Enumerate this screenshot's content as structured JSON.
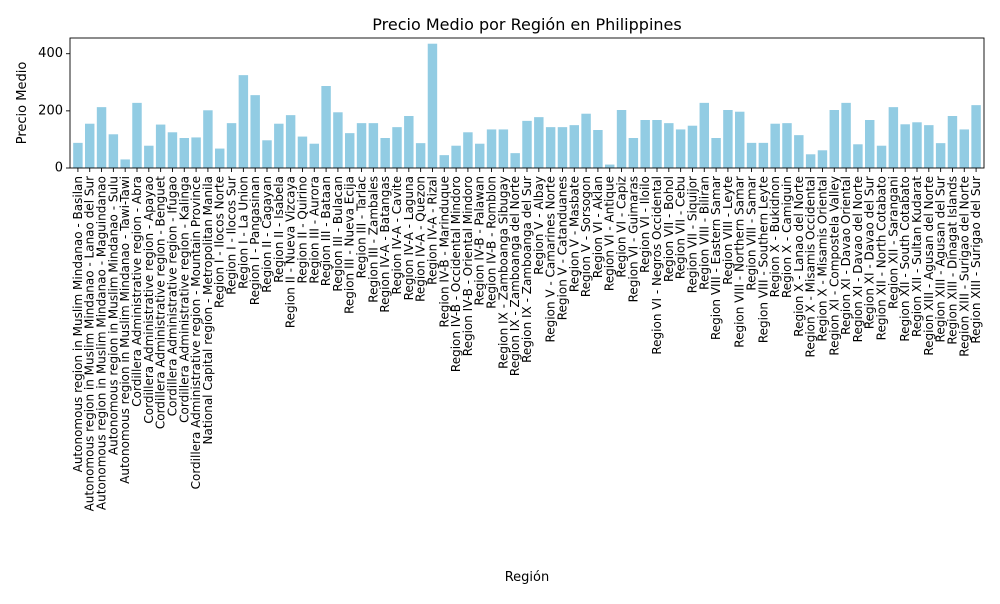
{
  "chart_data": {
    "type": "bar",
    "title": "Precio Medio por Región en Philippines",
    "xlabel": "Región",
    "ylabel": "Precio Medio",
    "ylim": [
      0,
      455
    ],
    "yticks": [
      0,
      200,
      400
    ],
    "grid": false,
    "bar_color": "#92cce3",
    "categories": [
      "Autonomous region in Muslim Mindanao - Basilan",
      "Autonomous region in Muslim Mindanao - Lanao del Sur",
      "Autonomous region in Muslim Mindanao - Maguindanao",
      "Autonomous region in Muslim Mindanao - Sulu",
      "Autonomous region in Muslim Mindanao - Tawi-Tawi",
      "Cordillera Administrative region - Abra",
      "Cordillera Administrative region - Apayao",
      "Cordillera Administrative region - Benguet",
      "Cordillera Administrative region - Ifugao",
      "Cordillera Administrative region - Kalinga",
      "Cordillera Administrative region - Mountain Province",
      "National Capital region - Metropolitan Manila",
      "Region I - Ilocos Norte",
      "Region I - Ilocos Sur",
      "Region I - La Union",
      "Region I - Pangasinan",
      "Region II - Cagayan",
      "Region II - Isabela",
      "Region II - Nueva Vizcaya",
      "Region II - Quirino",
      "Region III - Aurora",
      "Region III - Bataan",
      "Region III - Bulacan",
      "Region III - Nueva Ecija",
      "Region III - Tarlac",
      "Region III - Zambales",
      "Region IV-A - Batangas",
      "Region IV-A - Cavite",
      "Region IV-A - Laguna",
      "Region IV-A - Quezon",
      "Region IV-A - Rizal",
      "Region IV-B - Marinduque",
      "Region IV-B - Occidental Mindoro",
      "Region IV-B - Oriental Mindoro",
      "Region IV-B - Palawan",
      "Region IV-B - Romblon",
      "Region IX - Zamboanga Sibugay",
      "Region IX - Zamboanga del Norte",
      "Region IX - Zamboanga del Sur",
      "Region V - Albay",
      "Region V - Camarines Norte",
      "Region V - Catanduanes",
      "Region V - Masbate",
      "Region V - Sorsogon",
      "Region VI - Aklan",
      "Region VI - Antique",
      "Region VI - Capiz",
      "Region VI - Guimaras",
      "Region VI - Iloilo",
      "Region VI - Negros Occidental",
      "Region VII - Bohol",
      "Region VII - Cebu",
      "Region VII - Siquijor",
      "Region VIII - Biliran",
      "Region VIII - Eastern Samar",
      "Region VIII - Leyte",
      "Region VIII - Northern Samar",
      "Region VIII - Samar",
      "Region VIII - Southern Leyte",
      "Region X - Bukidnon",
      "Region X - Camiguin",
      "Region X - Lanao del Norte",
      "Region X - Misamis Occidental",
      "Region X - Misamis Oriental",
      "Region XI - Compostela Valley",
      "Region XI - Davao Oriental",
      "Region XI - Davao del Norte",
      "Region XI - Davao del Sur",
      "Region XII - North Cotabato",
      "Region XII - Sarangani",
      "Region XII - South Cotabato",
      "Region XII - Sultan Kudarat",
      "Region XIII - Agusan del Norte",
      "Region XIII - Agusan del Sur",
      "Region XIII - Dinagat Islands",
      "Region XIII - Surigao del Norte",
      "Region XIII - Surigao del Sur"
    ],
    "values": [
      88,
      155,
      213,
      118,
      30,
      228,
      78,
      152,
      125,
      105,
      107,
      202,
      68,
      157,
      325,
      255,
      97,
      155,
      185,
      110,
      85,
      287,
      195,
      122,
      157,
      157,
      105,
      143,
      182,
      87,
      435,
      45,
      78,
      125,
      85,
      135,
      135,
      52,
      165,
      178,
      143,
      143,
      150,
      190,
      133,
      12,
      203,
      105,
      168,
      168,
      157,
      135,
      148,
      228,
      105,
      203,
      197,
      88,
      88,
      155,
      157,
      115,
      48,
      62,
      203,
      228,
      83,
      168,
      78,
      213,
      153,
      160,
      150,
      87,
      182,
      135,
      220
    ]
  }
}
